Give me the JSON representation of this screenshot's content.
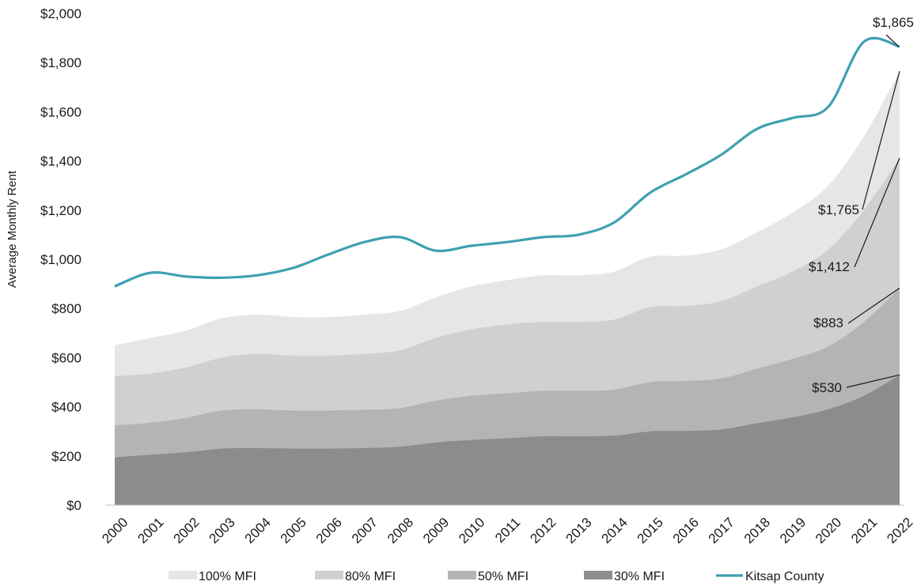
{
  "chart_data": {
    "type": "area",
    "title": "",
    "xlabel": "",
    "ylabel": "Average Monthly Rent",
    "x": [
      "2000",
      "2001",
      "2002",
      "2003",
      "2004",
      "2005",
      "2006",
      "2007",
      "2008",
      "2009",
      "2010",
      "2011",
      "2012",
      "2013",
      "2014",
      "2015",
      "2016",
      "2017",
      "2018",
      "2019",
      "2020",
      "2021",
      "2022"
    ],
    "ylim": [
      0,
      2000
    ],
    "yticks": [
      "$0",
      "$200",
      "$400",
      "$600",
      "$800",
      "$1,000",
      "$1,200",
      "$1,400",
      "$1,600",
      "$1,800",
      "$2,000"
    ],
    "ytick_values": [
      0,
      200,
      400,
      600,
      800,
      1000,
      1200,
      1400,
      1600,
      1800,
      2000
    ],
    "grid": false,
    "legend_position": "bottom",
    "series": [
      {
        "name": "100% MFI",
        "kind": "area",
        "color": "#e6e6e6",
        "values": [
          650,
          680,
          710,
          760,
          775,
          765,
          765,
          775,
          790,
          845,
          890,
          915,
          935,
          935,
          950,
          1010,
          1015,
          1040,
          1110,
          1190,
          1300,
          1500,
          1765
        ]
      },
      {
        "name": "80% MFI",
        "kind": "area",
        "color": "#d0d0d0",
        "values": [
          525,
          535,
          560,
          600,
          615,
          608,
          608,
          615,
          630,
          680,
          715,
          735,
          745,
          745,
          755,
          805,
          810,
          830,
          890,
          950,
          1040,
          1200,
          1412
        ]
      },
      {
        "name": "50% MFI",
        "kind": "area",
        "color": "#b4b4b4",
        "values": [
          325,
          335,
          355,
          385,
          390,
          385,
          385,
          388,
          395,
          425,
          445,
          455,
          465,
          465,
          470,
          500,
          505,
          515,
          555,
          595,
          645,
          745,
          883
        ]
      },
      {
        "name": "30% MFI",
        "kind": "area",
        "color": "#8c8c8c",
        "values": [
          195,
          205,
          215,
          230,
          232,
          230,
          230,
          232,
          238,
          255,
          265,
          272,
          280,
          280,
          283,
          300,
          302,
          308,
          333,
          357,
          390,
          445,
          530
        ]
      },
      {
        "name": "Kitsap County",
        "kind": "line",
        "color": "#3ea0b2",
        "values": [
          890,
          945,
          930,
          925,
          935,
          965,
          1020,
          1070,
          1090,
          1035,
          1055,
          1070,
          1090,
          1100,
          1150,
          1270,
          1345,
          1425,
          1530,
          1575,
          1620,
          1885,
          1865
        ]
      }
    ],
    "annotations": [
      {
        "text": "$1,865",
        "x": "2022",
        "y": 1865
      },
      {
        "text": "$1,765",
        "x": "2022",
        "y": 1765
      },
      {
        "text": "$1,412",
        "x": "2022",
        "y": 1412
      },
      {
        "text": "$883",
        "x": "2022",
        "y": 883
      },
      {
        "text": "$530",
        "x": "2022",
        "y": 530
      }
    ]
  }
}
